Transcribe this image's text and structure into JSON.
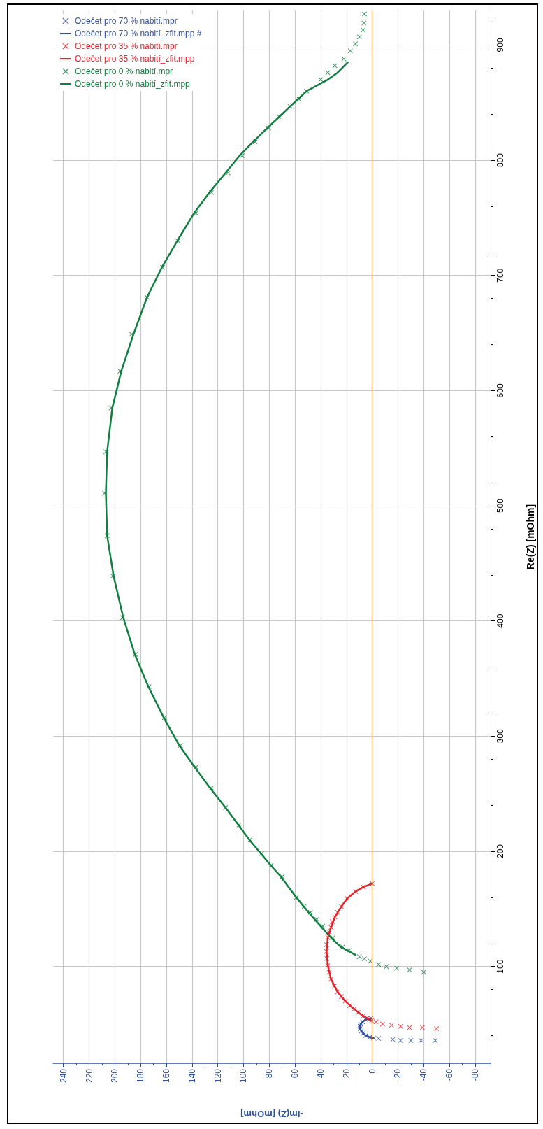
{
  "chart_data": {
    "type": "scatter",
    "xlabel": "-Im(Z) [mOhm]",
    "ylabel": "Re(Z) [mOhm]",
    "xlim": [
      248,
      -92
    ],
    "xticks": [
      240,
      220,
      200,
      180,
      160,
      140,
      120,
      100,
      80,
      60,
      40,
      20,
      0,
      -20,
      -40,
      -60,
      -80
    ],
    "ylim": [
      16,
      930
    ],
    "yticks": [
      100,
      200,
      300,
      400,
      500,
      600,
      700,
      800,
      900
    ],
    "grid": true,
    "legend": "top left",
    "ref_lines": [
      {
        "axis": "x",
        "value": 0,
        "color": "#f5a35a",
        "line_style": "solid"
      }
    ],
    "series": [
      {
        "name": "Odečet pro 70 % nabití.mpr",
        "marker": "cross",
        "color": "#3050a0",
        "values": [
          55,
          54,
          52,
          50,
          48,
          46,
          44,
          42,
          40,
          38.5,
          37.8,
          37.5,
          36.7,
          35.7,
          35.7,
          35.7,
          35.7
        ],
        "x": [
          1,
          5,
          7.5,
          9,
          9.5,
          9.5,
          8.5,
          7,
          5,
          2,
          -1,
          -5,
          -16,
          -22,
          -30,
          -38,
          -49
        ]
      },
      {
        "name": "Odečet pro 70 % nabití_zfit.mpp #",
        "type": "line",
        "marker": "none",
        "line_style": "solid",
        "color": "#3050a0",
        "values": [
          55,
          54,
          52,
          50,
          48,
          46,
          44,
          42,
          40,
          38.5,
          37.8
        ],
        "x": [
          1,
          5,
          7.5,
          9,
          9.5,
          9.5,
          8.5,
          7,
          5,
          2,
          -1
        ]
      },
      {
        "name": "Odečet pro 35 % nabití.mpr",
        "marker": "cross",
        "color": "#e8202a",
        "values": [
          172,
          169,
          165,
          159,
          152,
          147,
          143,
          139,
          134,
          130,
          125,
          119,
          113,
          107,
          101,
          95,
          89,
          83,
          78,
          74,
          70,
          66,
          63,
          60,
          57,
          55,
          53,
          52,
          50,
          49,
          48,
          47,
          47,
          46
        ],
        "x": [
          0,
          7,
          13,
          19.5,
          24,
          27,
          29,
          31,
          32,
          33.5,
          34.5,
          35.5,
          35.5,
          35.3,
          34.5,
          33.5,
          32,
          29.5,
          27,
          24,
          21,
          17.5,
          14,
          11,
          7,
          4,
          0.5,
          -3,
          -8,
          -15,
          -22,
          -29,
          -39,
          -50
        ]
      },
      {
        "name": "Odečet pro 35 % nabití_zfit.mpp",
        "type": "line",
        "marker": "none",
        "line_style": "solid",
        "color": "#e8202a",
        "values": [
          172,
          169,
          165,
          159,
          152,
          143,
          134,
          125,
          113,
          101,
          89,
          78,
          70,
          63,
          57,
          53
        ],
        "x": [
          0,
          7,
          13,
          19.5,
          24,
          29,
          32,
          34.5,
          35.5,
          34.5,
          32,
          27,
          21,
          14,
          7,
          0.5
        ]
      },
      {
        "name": "Odečet pro 0 % nabití.mpr",
        "marker": "cross",
        "color": "#108040",
        "values": [
          927,
          919,
          913,
          907,
          901,
          895,
          888,
          882,
          876,
          870,
          860,
          853,
          847,
          838,
          828,
          816,
          804,
          789,
          772,
          754,
          730,
          707,
          681,
          649,
          617,
          585,
          547,
          511,
          474,
          439,
          403,
          371,
          343,
          316,
          292,
          273,
          255,
          238,
          223,
          210,
          198,
          188,
          178,
          160,
          152,
          147,
          141,
          135,
          125,
          117,
          114,
          108.5,
          106.7,
          104.6,
          101.8,
          100,
          98.5,
          97,
          95.1
        ],
        "x": [
          6,
          6.5,
          7,
          10,
          13,
          17,
          22,
          29,
          34.5,
          40,
          51,
          57,
          64,
          72.5,
          80.5,
          91,
          101,
          112,
          125,
          137,
          151,
          163,
          175,
          187,
          196,
          203,
          207,
          208,
          206,
          201.5,
          194,
          184,
          173.5,
          161.5,
          149,
          137,
          125,
          114,
          103.5,
          95,
          86,
          78.5,
          70,
          59,
          53,
          48,
          43,
          38.5,
          30.5,
          23,
          18,
          10,
          6,
          1.5,
          -5,
          -11,
          -19,
          -29,
          -40
        ]
      },
      {
        "name": "Odečet pro 0 % nabití_zfit.mpp",
        "type": "line",
        "marker": "none",
        "line_style": "solid",
        "color": "#108040",
        "values": [
          885,
          876,
          870,
          860,
          847,
          838,
          828,
          816,
          804,
          789,
          772,
          754,
          730,
          707,
          681,
          649,
          617,
          585,
          547,
          511,
          474,
          439,
          403,
          371,
          343,
          316,
          292,
          273,
          255,
          238,
          223,
          210,
          198,
          188,
          178,
          160,
          147,
          135,
          125,
          117,
          110
        ],
        "x": [
          19,
          27,
          34.5,
          51,
          63.5,
          72,
          81.5,
          92.5,
          103,
          114,
          126.5,
          138.5,
          151.5,
          163.5,
          175,
          185.5,
          195,
          202,
          206,
          207,
          206,
          201,
          193.5,
          184.5,
          174,
          162,
          150,
          138,
          126,
          114,
          104,
          95.5,
          86.5,
          79,
          71,
          59,
          49.5,
          40,
          32,
          24.5,
          13
        ]
      }
    ]
  }
}
